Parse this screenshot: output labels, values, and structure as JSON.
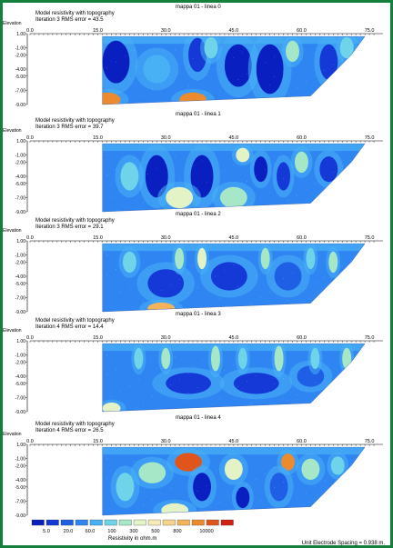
{
  "chart_data": [
    {
      "type": "heatmap",
      "title": "mappa 01 - linea 0",
      "subtitle": "Model resistivity with topography",
      "iteration_label": "Iteration 3 RMS error = 43.5",
      "ylabel": "Elevation",
      "x_ticks": [
        "0.0",
        "15.0",
        "30.0",
        "45.0",
        "60.0",
        "75.0"
      ],
      "y_ticks": [
        "1.00",
        "-1.00",
        "-2.00",
        "-4.00",
        "-5.00",
        "-7.00",
        "-9.00"
      ],
      "xlim": [
        0,
        75
      ],
      "ylim": [
        -9,
        1
      ],
      "shading": "contoured resistivity section; blue-dominated with low-resistivity blue/dark-blue blobs near x=15-23, 37-40, 45-52 and 65-70; orange high-resistivity zones near x=16-19 at depth -9 and x=35-38 at depth -9"
    },
    {
      "type": "heatmap",
      "title": "mappa 01 - linea 1",
      "subtitle": "Model resistivity with topography",
      "iteration_label": "Iteration 3 RMS error = 39.7",
      "ylabel": "Elevation",
      "x_ticks": [
        "0.0",
        "15.0",
        "30.0",
        "45.0",
        "60.0",
        "75.0"
      ],
      "y_ticks": [
        "1.00",
        "-1.00",
        "-2.00",
        "-4.00",
        "-5.00",
        "-7.00",
        "-9.00"
      ],
      "xlim": [
        0,
        75
      ],
      "ylim": [
        -9,
        1
      ],
      "shading": "blue section with dark-blue pockets near x=26-30, 36-40, 50-52, 55-57 and 65-68; light yellow-green patches at the bottom"
    },
    {
      "type": "heatmap",
      "title": "mappa 01 - linea 2",
      "subtitle": "Model resistivity with topography",
      "iteration_label": "Iteration 3 RMS error = 29.1",
      "ylabel": "Elevation",
      "x_ticks": [
        "0.0",
        "15.0",
        "30.0",
        "45.0",
        "60.0",
        "75.0"
      ],
      "y_ticks": [
        "1.00",
        "-1.00",
        "-2.00",
        "-4.00",
        "-5.00",
        "-7.00",
        "-9.00"
      ],
      "xlim": [
        0,
        75
      ],
      "ylim": [
        -9,
        1
      ],
      "shading": "mostly blue section with cyan and light-green vertical streaks near the top; orange-yellow zone at bottom near x=26-33"
    },
    {
      "type": "heatmap",
      "title": "mappa 01 - linea 3",
      "subtitle": "Model resistivity with topography",
      "iteration_label": "Iteration 4 RMS error = 14.4",
      "ylabel": "Elevation",
      "x_ticks": [
        "0.0",
        "15.0",
        "30.0",
        "45.0",
        "60.0",
        "75.0"
      ],
      "y_ticks": [
        "1.00",
        "-1.00",
        "-2.00",
        "-4.00",
        "-5.00",
        "-7.00",
        "-9.00"
      ],
      "xlim": [
        0,
        75
      ],
      "ylim": [
        -9,
        1
      ],
      "shading": "blue section with many thin cyan/light-green streaks near the top and a dark-blue layer in the middle"
    },
    {
      "type": "heatmap",
      "title": "mappa 01 - linea 4",
      "subtitle": "Model resistivity with topography",
      "iteration_label": "Iteration 4 RMS error = 26.5",
      "ylabel": "Elevation",
      "x_ticks": [
        "0.0",
        "15.0",
        "30.0",
        "45.0",
        "60.0",
        "75.0"
      ],
      "y_ticks": [
        "1.00",
        "-1.00",
        "-2.00",
        "-4.00",
        "-5.00",
        "-7.00",
        "-9.00"
      ],
      "xlim": [
        0,
        75
      ],
      "ylim": [
        -9,
        1
      ],
      "shading": "mixed section; orange/red high-resistivity zones at top near x=33-38 and x=56-58; dark-blue pockets near x=37-39 and 46-48 at depth"
    }
  ],
  "legend": {
    "colors": [
      "#0a1fbf",
      "#1439d6",
      "#1e5fe6",
      "#2f86f2",
      "#48b0f5",
      "#6fd3ea",
      "#a6e7c8",
      "#e3f3c6",
      "#f6e9b6",
      "#f4d48a",
      "#f2b35a",
      "#ec8a2e",
      "#e0551c",
      "#d31e12"
    ],
    "labels": [
      "5.0",
      "20.0",
      "60.0",
      "100",
      "300",
      "500",
      "800",
      "10000"
    ],
    "unit_label": "Resistivity in ohm.m"
  },
  "unit_electrode_spacing": "Unit Electrode Spacing = 0.938 m."
}
